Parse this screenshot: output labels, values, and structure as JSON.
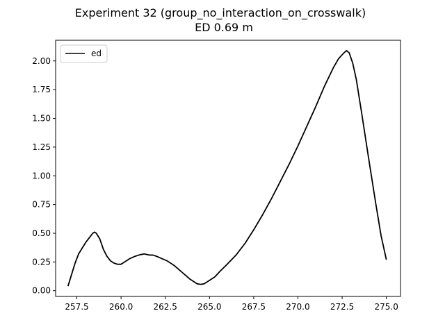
{
  "chart_data": {
    "type": "line",
    "title": "Experiment 32 (group_no_interaction_on_crosswalk)",
    "subtitle": "ED 0.69 m",
    "xlabel": "",
    "ylabel": "",
    "xlim": [
      256.3,
      275.8
    ],
    "ylim": [
      -0.05,
      2.18
    ],
    "xticks": [
      257.5,
      260.0,
      262.5,
      265.0,
      267.5,
      270.0,
      272.5,
      275.0
    ],
    "xtick_labels": [
      "257.5",
      "260.0",
      "262.5",
      "265.0",
      "267.5",
      "270.0",
      "272.5",
      "275.0"
    ],
    "yticks": [
      0.0,
      0.25,
      0.5,
      0.75,
      1.0,
      1.25,
      1.5,
      1.75,
      2.0
    ],
    "ytick_labels": [
      "0.00",
      "0.25",
      "0.50",
      "0.75",
      "1.00",
      "1.25",
      "1.50",
      "1.75",
      "2.00"
    ],
    "grid": false,
    "legend_position": "upper left",
    "series": [
      {
        "name": "ed",
        "color": "#000000",
        "x": [
          257.0,
          257.2,
          257.4,
          257.6,
          257.8,
          258.0,
          258.2,
          258.4,
          258.5,
          258.6,
          258.8,
          259.0,
          259.2,
          259.4,
          259.6,
          259.8,
          260.0,
          260.2,
          260.5,
          260.8,
          261.0,
          261.3,
          261.6,
          261.8,
          262.0,
          262.3,
          262.6,
          263.0,
          263.3,
          263.6,
          263.9,
          264.1,
          264.3,
          264.5,
          264.7,
          265.0,
          265.3,
          265.6,
          266.0,
          266.5,
          267.0,
          267.5,
          268.0,
          268.5,
          269.0,
          269.5,
          270.0,
          270.5,
          271.0,
          271.5,
          272.0,
          272.3,
          272.6,
          272.75,
          272.9,
          273.1,
          273.3,
          273.6,
          274.0,
          274.4,
          274.7,
          275.0
        ],
        "y": [
          0.04,
          0.14,
          0.24,
          0.32,
          0.37,
          0.42,
          0.46,
          0.5,
          0.51,
          0.5,
          0.45,
          0.36,
          0.3,
          0.26,
          0.24,
          0.23,
          0.23,
          0.25,
          0.28,
          0.3,
          0.31,
          0.32,
          0.31,
          0.31,
          0.3,
          0.28,
          0.26,
          0.22,
          0.18,
          0.14,
          0.1,
          0.08,
          0.06,
          0.055,
          0.06,
          0.09,
          0.12,
          0.17,
          0.23,
          0.31,
          0.41,
          0.53,
          0.66,
          0.8,
          0.95,
          1.1,
          1.26,
          1.43,
          1.6,
          1.78,
          1.94,
          2.02,
          2.07,
          2.09,
          2.07,
          1.98,
          1.84,
          1.55,
          1.15,
          0.76,
          0.48,
          0.27
        ]
      }
    ]
  }
}
